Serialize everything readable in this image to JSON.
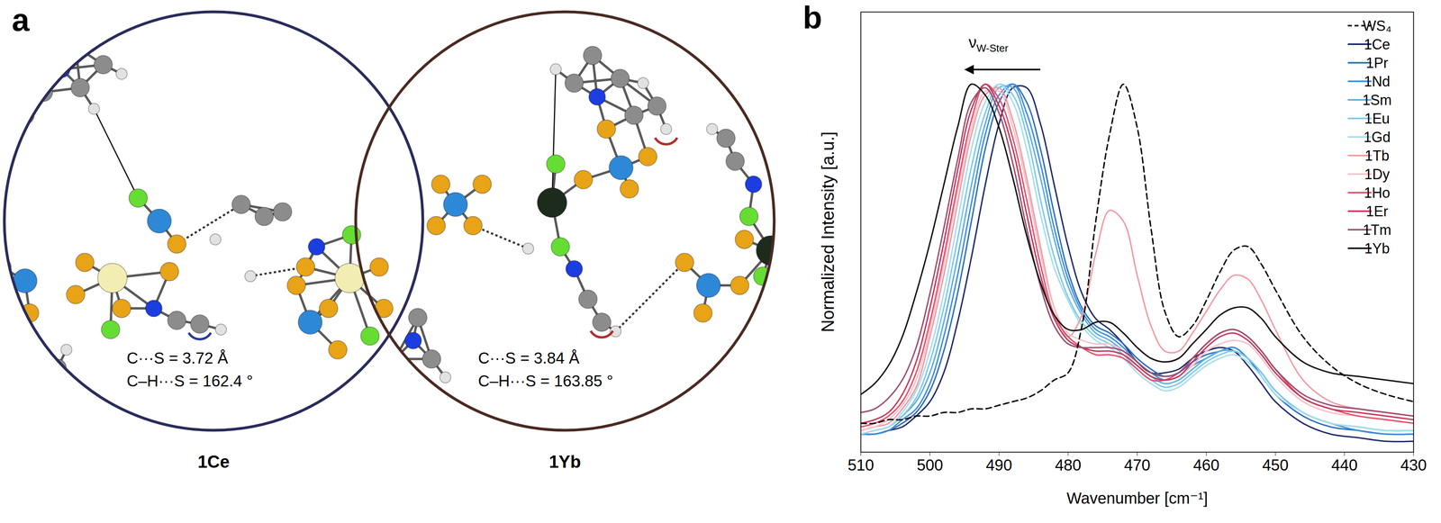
{
  "panel_a": {
    "label": "a",
    "structures": [
      {
        "name": "1Ce",
        "distance": "C···S = 3.72 Å",
        "angle": "C–H···S = 162.4 °"
      },
      {
        "name": "1Yb",
        "distance": "C···S = 3.84 Å",
        "angle": "C–H···S = 163.85 °"
      }
    ]
  },
  "chart_data": {
    "type": "line",
    "panel_label": "b",
    "x_label": "Wavenumber [cm⁻¹]",
    "y_label": "Normalized Intensity [a.u.]",
    "x": [
      510,
      508,
      506,
      504,
      502,
      500,
      498,
      496,
      494,
      492,
      490,
      488,
      486,
      484,
      482,
      480,
      478,
      476,
      474,
      472,
      470,
      468,
      466,
      464,
      462,
      460,
      458,
      456,
      454,
      452,
      450,
      446,
      442,
      438,
      434,
      430
    ],
    "xlim": [
      510,
      430
    ],
    "xticks": [
      510,
      500,
      490,
      480,
      470,
      460,
      450,
      440,
      430
    ],
    "ylim": [
      -0.02,
      1.2
    ],
    "tick_labels": "x",
    "legend": "top-right",
    "annotations": [
      {
        "text": "ν",
        "subscript": "W-Ster",
        "x": 491.5,
        "y": 1.1,
        "arrow_from": 484,
        "arrow_to": 495,
        "arrow_y": 1.04
      }
    ],
    "series": [
      {
        "name": "WS₄",
        "color": "#000000",
        "line_style": "dashed",
        "values": [
          0.06,
          0.06,
          0.07,
          0.07,
          0.08,
          0.08,
          0.09,
          0.09,
          0.1,
          0.1,
          0.11,
          0.12,
          0.13,
          0.15,
          0.18,
          0.2,
          0.33,
          0.62,
          0.86,
          1.0,
          0.88,
          0.6,
          0.37,
          0.3,
          0.33,
          0.4,
          0.48,
          0.54,
          0.55,
          0.5,
          0.43,
          0.3,
          0.22,
          0.17,
          0.14,
          0.12
        ]
      },
      {
        "name": "1Ce",
        "color": "#1f2a6b",
        "line_style": "solid",
        "values": [
          0.03,
          0.03,
          0.04,
          0.05,
          0.08,
          0.12,
          0.2,
          0.34,
          0.52,
          0.72,
          0.89,
          0.99,
          0.99,
          0.89,
          0.72,
          0.55,
          0.42,
          0.35,
          0.32,
          0.28,
          0.23,
          0.2,
          0.2,
          0.21,
          0.24,
          0.26,
          0.27,
          0.26,
          0.22,
          0.17,
          0.12,
          0.06,
          0.03,
          0.02,
          0.01,
          0.01
        ]
      },
      {
        "name": "1Pr",
        "color": "#2f6fc2",
        "line_style": "solid",
        "values": [
          0.03,
          0.03,
          0.04,
          0.06,
          0.09,
          0.15,
          0.26,
          0.42,
          0.62,
          0.82,
          0.95,
          1.0,
          0.95,
          0.82,
          0.64,
          0.48,
          0.38,
          0.33,
          0.31,
          0.28,
          0.24,
          0.21,
          0.19,
          0.2,
          0.23,
          0.25,
          0.26,
          0.27,
          0.24,
          0.19,
          0.14,
          0.08,
          0.05,
          0.04,
          0.03,
          0.03
        ]
      },
      {
        "name": "1Nd",
        "color": "#3d8fd8",
        "line_style": "solid",
        "values": [
          0.03,
          0.03,
          0.04,
          0.07,
          0.1,
          0.17,
          0.3,
          0.47,
          0.67,
          0.86,
          0.97,
          1.0,
          0.92,
          0.78,
          0.6,
          0.46,
          0.37,
          0.32,
          0.3,
          0.27,
          0.23,
          0.2,
          0.18,
          0.19,
          0.22,
          0.24,
          0.26,
          0.27,
          0.24,
          0.2,
          0.15,
          0.09,
          0.06,
          0.04,
          0.03,
          0.03
        ]
      },
      {
        "name": "1Sm",
        "color": "#5caee2",
        "line_style": "solid",
        "values": [
          0.03,
          0.04,
          0.05,
          0.08,
          0.12,
          0.2,
          0.34,
          0.52,
          0.72,
          0.89,
          0.99,
          0.99,
          0.89,
          0.74,
          0.57,
          0.44,
          0.36,
          0.31,
          0.29,
          0.26,
          0.22,
          0.19,
          0.17,
          0.18,
          0.21,
          0.24,
          0.26,
          0.26,
          0.24,
          0.2,
          0.15,
          0.09,
          0.06,
          0.05,
          0.04,
          0.04
        ]
      },
      {
        "name": "1Eu",
        "color": "#7ccae6",
        "line_style": "solid",
        "values": [
          0.03,
          0.04,
          0.05,
          0.08,
          0.13,
          0.23,
          0.38,
          0.57,
          0.77,
          0.92,
          1.0,
          0.97,
          0.86,
          0.68,
          0.52,
          0.41,
          0.34,
          0.3,
          0.28,
          0.25,
          0.21,
          0.18,
          0.16,
          0.17,
          0.2,
          0.23,
          0.25,
          0.26,
          0.24,
          0.2,
          0.15,
          0.09,
          0.06,
          0.05,
          0.04,
          0.04
        ]
      },
      {
        "name": "1Gd",
        "color": "#a6deee",
        "line_style": "solid",
        "values": [
          0.03,
          0.04,
          0.05,
          0.09,
          0.15,
          0.26,
          0.42,
          0.62,
          0.82,
          0.95,
          1.0,
          0.95,
          0.82,
          0.64,
          0.49,
          0.4,
          0.33,
          0.29,
          0.27,
          0.24,
          0.2,
          0.17,
          0.15,
          0.16,
          0.19,
          0.22,
          0.24,
          0.25,
          0.23,
          0.19,
          0.14,
          0.09,
          0.06,
          0.05,
          0.04,
          0.04
        ]
      },
      {
        "name": "1Tb",
        "color": "#f29aa4",
        "line_style": "solid",
        "values": [
          0.04,
          0.05,
          0.06,
          0.1,
          0.16,
          0.3,
          0.47,
          0.67,
          0.86,
          0.97,
          0.99,
          0.9,
          0.74,
          0.55,
          0.38,
          0.3,
          0.36,
          0.53,
          0.65,
          0.62,
          0.47,
          0.33,
          0.26,
          0.26,
          0.31,
          0.37,
          0.43,
          0.47,
          0.46,
          0.4,
          0.32,
          0.18,
          0.12,
          0.1,
          0.09,
          0.08
        ]
      },
      {
        "name": "1Dy",
        "color": "#f6c2ca",
        "line_style": "solid",
        "values": [
          0.04,
          0.05,
          0.07,
          0.11,
          0.18,
          0.32,
          0.5,
          0.7,
          0.88,
          0.98,
          0.98,
          0.88,
          0.72,
          0.53,
          0.38,
          0.31,
          0.29,
          0.28,
          0.28,
          0.26,
          0.22,
          0.19,
          0.18,
          0.19,
          0.22,
          0.26,
          0.28,
          0.29,
          0.28,
          0.24,
          0.19,
          0.12,
          0.09,
          0.08,
          0.07,
          0.06
        ]
      },
      {
        "name": "1Ho",
        "color": "#e6506a",
        "line_style": "solid",
        "values": [
          0.05,
          0.06,
          0.08,
          0.12,
          0.2,
          0.34,
          0.52,
          0.72,
          0.9,
          1.0,
          0.96,
          0.85,
          0.68,
          0.5,
          0.36,
          0.3,
          0.27,
          0.25,
          0.25,
          0.24,
          0.21,
          0.18,
          0.18,
          0.2,
          0.24,
          0.28,
          0.31,
          0.32,
          0.3,
          0.26,
          0.21,
          0.13,
          0.1,
          0.08,
          0.07,
          0.06
        ]
      },
      {
        "name": "1Er",
        "color": "#c5385c",
        "line_style": "solid",
        "values": [
          0.06,
          0.07,
          0.09,
          0.14,
          0.23,
          0.38,
          0.56,
          0.76,
          0.93,
          1.0,
          0.94,
          0.82,
          0.64,
          0.47,
          0.35,
          0.29,
          0.27,
          0.26,
          0.26,
          0.25,
          0.22,
          0.19,
          0.18,
          0.19,
          0.23,
          0.27,
          0.3,
          0.31,
          0.29,
          0.25,
          0.2,
          0.13,
          0.1,
          0.09,
          0.08,
          0.07
        ]
      },
      {
        "name": "1Tm",
        "color": "#9c4f6e",
        "line_style": "solid",
        "values": [
          0.09,
          0.1,
          0.13,
          0.18,
          0.27,
          0.42,
          0.6,
          0.79,
          0.95,
          0.99,
          0.92,
          0.78,
          0.6,
          0.44,
          0.33,
          0.28,
          0.27,
          0.27,
          0.27,
          0.26,
          0.23,
          0.2,
          0.19,
          0.2,
          0.24,
          0.28,
          0.31,
          0.32,
          0.3,
          0.26,
          0.21,
          0.14,
          0.11,
          0.1,
          0.09,
          0.08
        ]
      },
      {
        "name": "1Yb",
        "color": "#111111",
        "line_style": "solid",
        "values": [
          0.14,
          0.17,
          0.22,
          0.3,
          0.42,
          0.56,
          0.72,
          0.88,
          1.0,
          0.97,
          0.88,
          0.74,
          0.58,
          0.45,
          0.36,
          0.32,
          0.32,
          0.34,
          0.34,
          0.31,
          0.27,
          0.24,
          0.23,
          0.24,
          0.28,
          0.32,
          0.36,
          0.38,
          0.38,
          0.35,
          0.3,
          0.23,
          0.2,
          0.19,
          0.18,
          0.17
        ]
      }
    ]
  }
}
